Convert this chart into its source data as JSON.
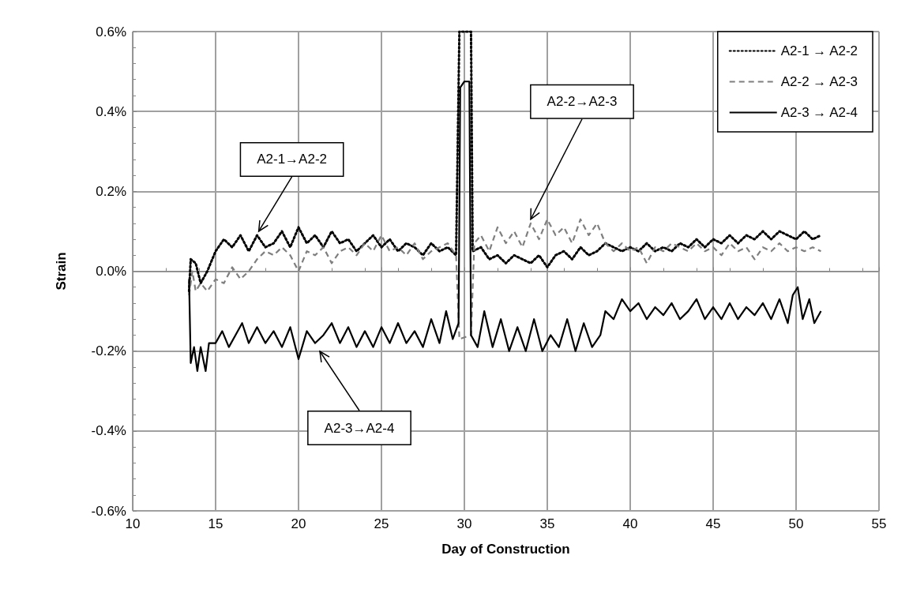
{
  "chart_data": {
    "type": "line",
    "xlabel": "Day of Construction",
    "ylabel": "Strain",
    "xlim": [
      10,
      55
    ],
    "xticks": [
      10,
      15,
      20,
      25,
      30,
      35,
      40,
      45,
      50,
      55
    ],
    "ylim": [
      -0.6,
      0.6
    ],
    "yticks": [
      {
        "value": -0.6,
        "label": "-0.6%"
      },
      {
        "value": -0.4,
        "label": "-0.4%"
      },
      {
        "value": -0.2,
        "label": "-0.2%"
      },
      {
        "value": 0,
        "label": "0.0%"
      },
      {
        "value": 0.2,
        "label": "0.2%"
      },
      {
        "value": 0.4,
        "label": "0.4%"
      },
      {
        "value": 0.6,
        "label": "0.6%"
      }
    ],
    "grid": true,
    "legend": "top right",
    "marker": "none",
    "annotations": [
      {
        "text": "A2-1→A2-2",
        "x": 17.6,
        "y": 0.1
      },
      {
        "text": "A2-2→A2-3",
        "x": 34,
        "y": 0.13
      },
      "A2-3→A2-4"
    ],
    "series": [
      {
        "name": "A2-1 → A2-2",
        "color": "#000000",
        "line_style": "dotted",
        "x": [
          13.4,
          13.5,
          13.8,
          14.1,
          14.5,
          15,
          15.5,
          16,
          16.5,
          17,
          17.5,
          18,
          18.5,
          19,
          19.5,
          20,
          20.5,
          21,
          21.5,
          22,
          22.5,
          23,
          23.5,
          24,
          24.5,
          25,
          25.5,
          26,
          26.5,
          27,
          27.5,
          28,
          28.5,
          29,
          29.5,
          29.7,
          30.4,
          30.5,
          31,
          31.5,
          32,
          32.5,
          33,
          33.5,
          34,
          34.5,
          35,
          35.5,
          36,
          36.5,
          37,
          37.5,
          38,
          38.5,
          39,
          39.5,
          40,
          40.5,
          41,
          41.5,
          42,
          42.5,
          43,
          43.5,
          44,
          44.5,
          45,
          45.5,
          46,
          46.5,
          47,
          47.5,
          48,
          48.5,
          49,
          49.5,
          50,
          50.5,
          51,
          51.5
        ],
        "values": [
          -0.05,
          0.03,
          0.02,
          -0.03,
          0.0,
          0.05,
          0.08,
          0.06,
          0.09,
          0.05,
          0.09,
          0.06,
          0.07,
          0.1,
          0.06,
          0.11,
          0.07,
          0.09,
          0.06,
          0.1,
          0.07,
          0.08,
          0.05,
          0.07,
          0.09,
          0.06,
          0.08,
          0.05,
          0.07,
          0.06,
          0.04,
          0.07,
          0.05,
          0.06,
          0.04,
          0.6,
          0.6,
          0.05,
          0.06,
          0.03,
          0.04,
          0.02,
          0.04,
          0.03,
          0.02,
          0.04,
          0.01,
          0.04,
          0.05,
          0.03,
          0.06,
          0.04,
          0.05,
          0.07,
          0.06,
          0.05,
          0.06,
          0.05,
          0.07,
          0.05,
          0.06,
          0.05,
          0.07,
          0.06,
          0.08,
          0.06,
          0.08,
          0.07,
          0.09,
          0.07,
          0.09,
          0.08,
          0.1,
          0.08,
          0.1,
          0.09,
          0.08,
          0.1,
          0.08,
          0.09
        ]
      },
      {
        "name": "A2-2 → A2-3",
        "color": "#7f7f7f",
        "line_style": "dashed",
        "x": [
          13.4,
          13.6,
          13.8,
          14.1,
          14.5,
          15,
          15.5,
          16,
          16.5,
          17,
          17.5,
          18,
          18.5,
          19,
          19.5,
          20,
          20.5,
          21,
          21.5,
          22,
          22.5,
          23,
          23.5,
          24,
          24.5,
          25,
          25.5,
          26,
          26.5,
          27,
          27.5,
          28,
          28.5,
          29,
          29.5,
          29.7,
          30.4,
          30.6,
          31,
          31.5,
          32,
          32.5,
          33,
          33.5,
          34,
          34.5,
          35,
          35.5,
          36,
          36.5,
          37,
          37.5,
          38,
          38.5,
          39,
          39.5,
          40,
          40.5,
          41,
          41.5,
          42,
          42.5,
          43,
          43.5,
          44,
          44.5,
          45,
          45.5,
          46,
          46.5,
          47,
          47.5,
          48,
          48.5,
          49,
          49.5,
          50,
          50.5,
          51,
          51.5
        ],
        "values": [
          -0.06,
          0.0,
          -0.05,
          -0.03,
          -0.05,
          -0.02,
          -0.03,
          0.01,
          -0.02,
          0.0,
          0.03,
          0.05,
          0.04,
          0.06,
          0.04,
          0.0,
          0.05,
          0.04,
          0.06,
          0.02,
          0.05,
          0.06,
          0.04,
          0.07,
          0.05,
          0.09,
          0.05,
          0.06,
          0.04,
          0.07,
          0.03,
          0.05,
          0.06,
          0.07,
          0.04,
          -0.17,
          -0.16,
          0.07,
          0.09,
          0.05,
          0.11,
          0.07,
          0.1,
          0.06,
          0.12,
          0.08,
          0.13,
          0.09,
          0.11,
          0.07,
          0.13,
          0.09,
          0.12,
          0.07,
          0.05,
          0.07,
          0.05,
          0.06,
          0.02,
          0.06,
          0.05,
          0.07,
          0.06,
          0.05,
          0.07,
          0.05,
          0.06,
          0.04,
          0.07,
          0.05,
          0.06,
          0.03,
          0.06,
          0.05,
          0.07,
          0.05,
          0.06,
          0.05,
          0.06,
          0.05
        ]
      },
      {
        "name": "A2-3 → A2-4",
        "color": "#000000",
        "line_style": "solid",
        "x": [
          13.4,
          13.5,
          13.7,
          13.9,
          14.1,
          14.4,
          14.6,
          15,
          15.4,
          15.8,
          16.2,
          16.6,
          17,
          17.5,
          18,
          18.5,
          19,
          19.5,
          20,
          20.5,
          21,
          21.5,
          22,
          22.5,
          23,
          23.5,
          24,
          24.5,
          25,
          25.5,
          26,
          26.5,
          27,
          27.5,
          28,
          28.5,
          28.9,
          29.3,
          29.65,
          29.75,
          30.0,
          30.3,
          30.4,
          30.8,
          31.2,
          31.7,
          32.2,
          32.7,
          33.2,
          33.7,
          34.2,
          34.7,
          35.2,
          35.7,
          36.2,
          36.7,
          37.2,
          37.7,
          38.2,
          38.5,
          39,
          39.5,
          40,
          40.5,
          41,
          41.5,
          42,
          42.5,
          43,
          43.5,
          44,
          44.5,
          45,
          45.5,
          46,
          46.5,
          47,
          47.5,
          48,
          48.5,
          49,
          49.5,
          49.8,
          50.1,
          50.4,
          50.8,
          51.1,
          51.5
        ],
        "values": [
          -0.02,
          -0.23,
          -0.19,
          -0.25,
          -0.19,
          -0.25,
          -0.18,
          -0.18,
          -0.15,
          -0.19,
          -0.16,
          -0.13,
          -0.18,
          -0.14,
          -0.18,
          -0.15,
          -0.19,
          -0.14,
          -0.22,
          -0.15,
          -0.18,
          -0.16,
          -0.13,
          -0.18,
          -0.14,
          -0.19,
          -0.15,
          -0.19,
          -0.14,
          -0.18,
          -0.13,
          -0.18,
          -0.15,
          -0.19,
          -0.12,
          -0.18,
          -0.1,
          -0.17,
          -0.13,
          0.46,
          0.475,
          0.475,
          -0.16,
          -0.19,
          -0.1,
          -0.19,
          -0.12,
          -0.2,
          -0.14,
          -0.2,
          -0.12,
          -0.2,
          -0.16,
          -0.19,
          -0.12,
          -0.2,
          -0.13,
          -0.19,
          -0.16,
          -0.1,
          -0.12,
          -0.07,
          -0.1,
          -0.08,
          -0.12,
          -0.09,
          -0.11,
          -0.08,
          -0.12,
          -0.1,
          -0.07,
          -0.12,
          -0.09,
          -0.12,
          -0.08,
          -0.12,
          -0.09,
          -0.11,
          -0.08,
          -0.12,
          -0.07,
          -0.13,
          -0.06,
          -0.04,
          -0.12,
          -0.07,
          -0.13,
          -0.1
        ]
      }
    ]
  }
}
